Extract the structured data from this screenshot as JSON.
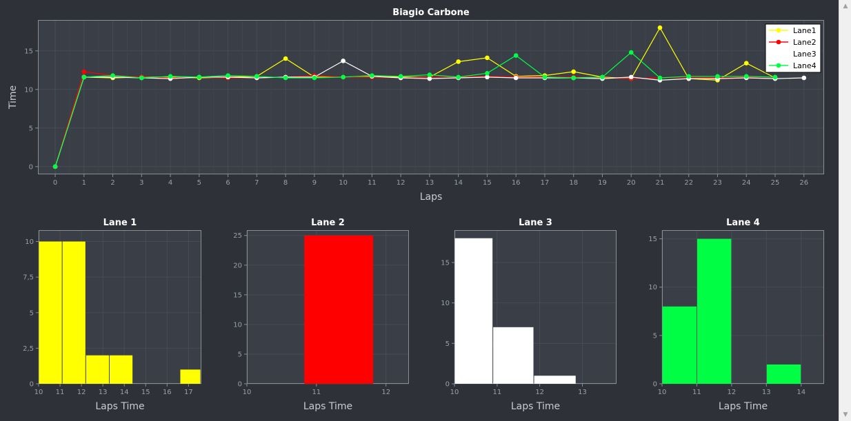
{
  "colors": {
    "background": "#2e3238",
    "plot_background": "#3a3f47",
    "grid": "#474c54",
    "axis": "#8a8f96",
    "tick_text": "#9aa0a6",
    "title_text": "#ffffff",
    "label_text": "#c8ccd0",
    "lane1": "#ffff00",
    "lane2": "#ff0000",
    "lane3": "#ffffff",
    "lane4": "#00ff44"
  },
  "scrollbar": {
    "up_icon": "▲",
    "down_icon": "▼"
  },
  "chart_data": [
    {
      "id": "laps",
      "type": "line",
      "title": "Biagio Carbone",
      "xlabel": "Laps",
      "ylabel": "Time",
      "xlim": [
        -0.6,
        26.7
      ],
      "ylim": [
        -1,
        19
      ],
      "x_ticks": [
        0,
        1,
        2,
        3,
        4,
        5,
        6,
        7,
        8,
        9,
        10,
        11,
        12,
        13,
        14,
        15,
        16,
        17,
        18,
        19,
        20,
        21,
        22,
        23,
        24,
        25,
        26
      ],
      "y_ticks": [
        0,
        5,
        10,
        15
      ],
      "grid": true,
      "legend": "top-right",
      "series": [
        {
          "name": "Lane1",
          "color_key": "lane1",
          "marker": true,
          "x": [
            0,
            1,
            2,
            3,
            4,
            5,
            6,
            7,
            8,
            9,
            10,
            11,
            12,
            13,
            14,
            15,
            16,
            17,
            18,
            19,
            20,
            21,
            22,
            23,
            24,
            25
          ],
          "y": [
            0,
            11.6,
            11.5,
            11.6,
            11.6,
            11.5,
            11.6,
            11.7,
            14.0,
            11.6,
            11.6,
            11.7,
            11.6,
            11.6,
            13.6,
            14.1,
            11.7,
            11.8,
            12.3,
            11.6,
            11.4,
            18.0,
            11.4,
            11.2,
            13.4,
            11.5
          ]
        },
        {
          "name": "Lane2",
          "color_key": "lane2",
          "marker": true,
          "x": [
            0,
            1,
            2,
            3,
            4,
            5,
            6,
            7,
            8,
            9,
            10,
            11,
            12,
            13,
            14,
            15,
            16,
            17,
            18,
            19,
            20,
            21,
            22,
            23,
            24,
            25
          ],
          "y": [
            0,
            12.3,
            11.8,
            11.6,
            11.5,
            11.6,
            11.5,
            11.5,
            11.6,
            11.8,
            11.6,
            11.6,
            11.5,
            11.6,
            11.6,
            11.7,
            11.6,
            11.6,
            11.6,
            11.5,
            11.4,
            11.5,
            11.6,
            11.5,
            11.6,
            11.6
          ]
        },
        {
          "name": "Lane3",
          "color_key": "lane3",
          "marker": true,
          "x": [
            0,
            1,
            2,
            3,
            4,
            5,
            6,
            7,
            8,
            9,
            10,
            11,
            12,
            13,
            14,
            15,
            16,
            17,
            18,
            19,
            20,
            21,
            22,
            23,
            24,
            25,
            26
          ],
          "y": [
            0,
            11.6,
            11.6,
            11.5,
            11.4,
            11.6,
            11.6,
            11.5,
            11.6,
            11.6,
            13.7,
            11.7,
            11.5,
            11.4,
            11.5,
            11.6,
            11.5,
            11.5,
            11.5,
            11.4,
            11.6,
            11.2,
            11.4,
            11.4,
            11.5,
            11.4,
            11.5
          ]
        },
        {
          "name": "Lane4",
          "color_key": "lane4",
          "marker": true,
          "x": [
            0,
            1,
            2,
            3,
            4,
            5,
            6,
            7,
            8,
            9,
            10,
            11,
            12,
            13,
            14,
            15,
            16,
            17,
            18,
            19,
            20,
            21,
            22,
            23,
            24,
            25
          ],
          "y": [
            0,
            11.6,
            11.8,
            11.5,
            11.7,
            11.6,
            11.8,
            11.7,
            11.5,
            11.5,
            11.6,
            11.8,
            11.7,
            11.9,
            11.6,
            12.1,
            14.4,
            11.6,
            11.5,
            11.6,
            14.8,
            11.5,
            11.7,
            11.7,
            11.7,
            11.6
          ]
        }
      ]
    },
    {
      "id": "lane1",
      "type": "bar",
      "title": "Lane 1",
      "xlabel": "Laps Time",
      "ylabel": "",
      "color_key": "lane1",
      "xlim": [
        10,
        17.6
      ],
      "ylim": [
        0,
        10.8
      ],
      "x_ticks": [
        10,
        11,
        12,
        13,
        14,
        15,
        16,
        17
      ],
      "y_ticks": [
        0,
        2.5,
        5,
        7.5,
        10
      ],
      "y_tick_labels": [
        "0",
        "2,5",
        "5",
        "7,5",
        "10"
      ],
      "grid": true,
      "bars": [
        {
          "x0": 10.0,
          "x1": 11.1,
          "value": 10
        },
        {
          "x0": 11.1,
          "x1": 12.2,
          "value": 10
        },
        {
          "x0": 12.2,
          "x1": 13.3,
          "value": 2
        },
        {
          "x0": 13.3,
          "x1": 14.4,
          "value": 2
        },
        {
          "x0": 16.6,
          "x1": 17.7,
          "value": 1
        }
      ]
    },
    {
      "id": "lane2",
      "type": "bar",
      "title": "Lane 2",
      "xlabel": "Laps Time",
      "ylabel": "",
      "color_key": "lane2",
      "xlim": [
        10,
        12.33
      ],
      "ylim": [
        0,
        25.9
      ],
      "x_ticks": [
        10,
        11,
        12
      ],
      "y_ticks": [
        0,
        5,
        10,
        15,
        20,
        25
      ],
      "grid": true,
      "bars": [
        {
          "x0": 10.82,
          "x1": 11.82,
          "value": 25
        }
      ]
    },
    {
      "id": "lane3",
      "type": "bar",
      "title": "Lane 3",
      "xlabel": "Laps Time",
      "ylabel": "",
      "color_key": "lane3",
      "xlim": [
        10,
        13.8
      ],
      "ylim": [
        0,
        19
      ],
      "x_ticks": [
        10,
        11,
        12,
        13
      ],
      "y_ticks": [
        0,
        5,
        10,
        15
      ],
      "grid": true,
      "bars": [
        {
          "x0": 10.0,
          "x1": 10.9,
          "value": 18
        },
        {
          "x0": 10.9,
          "x1": 11.86,
          "value": 7
        },
        {
          "x0": 11.86,
          "x1": 12.85,
          "value": 1
        }
      ]
    },
    {
      "id": "lane4",
      "type": "bar",
      "title": "Lane 4",
      "xlabel": "Laps Time",
      "ylabel": "",
      "color_key": "lane4",
      "xlim": [
        10,
        14.66
      ],
      "ylim": [
        0,
        15.9
      ],
      "x_ticks": [
        10,
        11,
        12,
        13,
        14
      ],
      "y_ticks": [
        0,
        5,
        10,
        15
      ],
      "grid": true,
      "bars": [
        {
          "x0": 10.0,
          "x1": 11.0,
          "value": 8
        },
        {
          "x0": 11.0,
          "x1": 12.0,
          "value": 15
        },
        {
          "x0": 13.0,
          "x1": 14.0,
          "value": 2
        }
      ]
    }
  ]
}
